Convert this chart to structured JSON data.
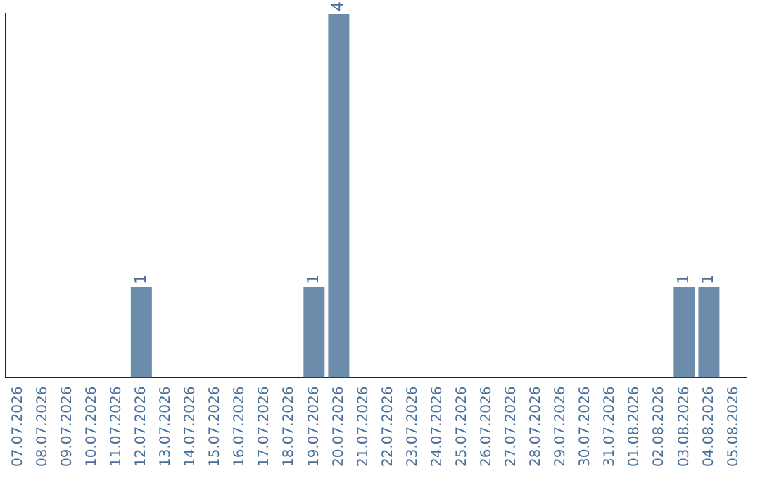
{
  "chart_data": {
    "type": "bar",
    "categories": [
      "07.07.2026",
      "08.07.2026",
      "09.07.2026",
      "10.07.2026",
      "11.07.2026",
      "12.07.2026",
      "13.07.2026",
      "14.07.2026",
      "15.07.2026",
      "16.07.2026",
      "17.07.2026",
      "18.07.2026",
      "19.07.2026",
      "20.07.2026",
      "21.07.2026",
      "22.07.2026",
      "23.07.2026",
      "24.07.2026",
      "25.07.2026",
      "26.07.2026",
      "27.07.2026",
      "28.07.2026",
      "29.07.2026",
      "30.07.2026",
      "31.07.2026",
      "01.08.2026",
      "02.08.2026",
      "03.08.2026",
      "04.08.2026",
      "05.08.2026"
    ],
    "values": [
      0,
      0,
      0,
      0,
      0,
      1,
      0,
      0,
      0,
      0,
      0,
      0,
      1,
      4,
      0,
      0,
      0,
      0,
      0,
      0,
      0,
      0,
      0,
      0,
      0,
      0,
      0,
      1,
      1,
      0
    ],
    "value_labels": [
      null,
      null,
      null,
      null,
      null,
      "1",
      null,
      null,
      null,
      null,
      null,
      null,
      "1",
      "4",
      null,
      null,
      null,
      null,
      null,
      null,
      null,
      null,
      null,
      null,
      null,
      null,
      null,
      "1",
      "1",
      null
    ],
    "color": "#6b8cab",
    "grid": false,
    "tick_labels": "x"
  }
}
